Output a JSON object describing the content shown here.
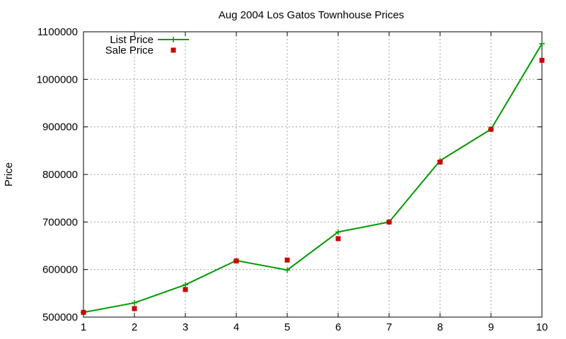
{
  "chart_data": {
    "type": "line",
    "title": "Aug 2004 Los Gatos Townhouse Prices",
    "xlabel": "",
    "ylabel": "Price",
    "x": [
      1,
      2,
      3,
      4,
      5,
      6,
      7,
      8,
      9,
      10
    ],
    "xlim": [
      1,
      10
    ],
    "ylim": [
      500000,
      1100000
    ],
    "xticks": [
      "1",
      "2",
      "3",
      "4",
      "5",
      "6",
      "7",
      "8",
      "9",
      "10"
    ],
    "yticks": [
      "500000",
      "600000",
      "700000",
      "800000",
      "900000",
      "1000000",
      "1100000"
    ],
    "ytick_values": [
      500000,
      600000,
      700000,
      800000,
      900000,
      1000000,
      1100000
    ],
    "grid": true,
    "legend_position": "top-left",
    "series": [
      {
        "name": "List Price",
        "style": "line-with-plus-markers",
        "color": "#009900",
        "values": [
          510000,
          530000,
          568000,
          619000,
          599000,
          679000,
          700000,
          829000,
          895000,
          1075000
        ]
      },
      {
        "name": "Sale Price",
        "style": "square-markers",
        "color": "#cc0000",
        "values": [
          510000,
          518000,
          558000,
          618000,
          620000,
          665000,
          700000,
          826000,
          895000,
          1040000
        ]
      }
    ]
  }
}
